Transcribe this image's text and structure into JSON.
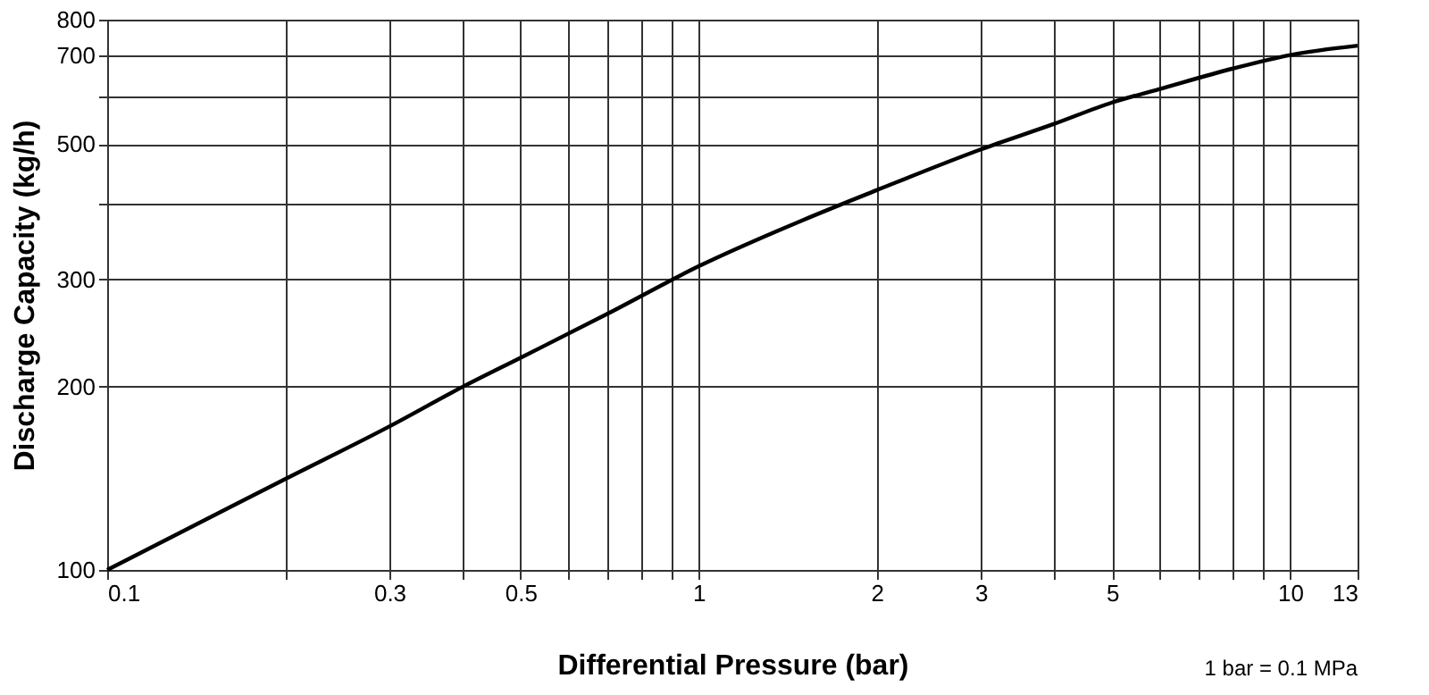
{
  "chart_data": {
    "type": "line",
    "xlabel": "Differential Pressure (bar)",
    "ylabel": "Discharge Capacity (kg/h)",
    "x": [
      0.1,
      0.2,
      0.3,
      0.4,
      0.5,
      0.7,
      1,
      1.5,
      2,
      3,
      4,
      5,
      6,
      8,
      10,
      13
    ],
    "series": [
      {
        "color": "#000000",
        "values": [
          100,
          141,
          172,
          200,
          223,
          263,
          315,
          375,
          420,
          490,
          540,
          585,
          615,
          665,
          700,
          725
        ]
      }
    ],
    "log": "xy",
    "xlim": [
      0.1,
      13
    ],
    "ylim": [
      100,
      800
    ],
    "xticks": [
      0.1,
      {
        "value": 0.2,
        "label": null
      },
      0.3,
      {
        "value": 0.4,
        "label": null
      },
      0.5,
      {
        "value": 0.6,
        "label": null
      },
      {
        "value": 0.7,
        "label": null
      },
      {
        "value": 0.8,
        "label": null
      },
      {
        "value": 0.9,
        "label": null
      },
      1,
      2,
      3,
      {
        "value": 4,
        "label": null
      },
      5,
      {
        "value": 6,
        "label": null
      },
      {
        "value": 7,
        "label": null
      },
      {
        "value": 8,
        "label": null
      },
      {
        "value": 9,
        "label": null
      },
      10,
      13
    ],
    "yticks": [
      100,
      200,
      300,
      {
        "value": 400,
        "label": null
      },
      500,
      {
        "value": 600,
        "label": null
      },
      700,
      800
    ],
    "grid": true,
    "marker": "none",
    "line_style": "solid",
    "annotations": [
      "1 bar = 0.1 MPa"
    ]
  }
}
